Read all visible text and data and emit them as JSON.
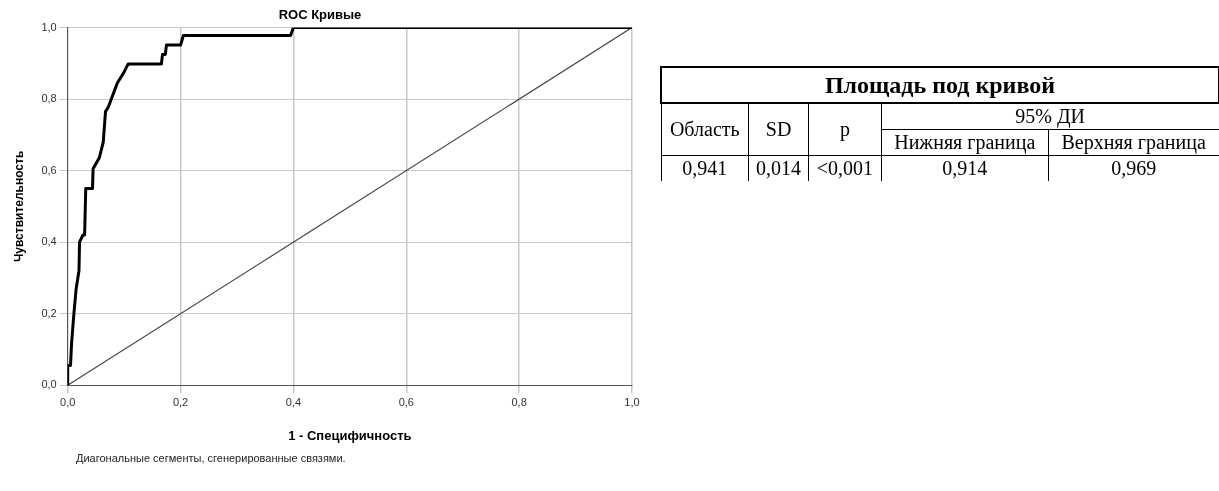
{
  "chart_data": [
    {
      "type": "line",
      "title": "ROC Кривые",
      "xlabel": "1 - Специфичность",
      "ylabel": "Чувствительность",
      "xlim": [
        0,
        1
      ],
      "ylim": [
        0,
        1
      ],
      "xticks": [
        {
          "value": 0,
          "label": "0,0"
        },
        {
          "value": 0.2,
          "label": "0,2"
        },
        {
          "value": 0.4,
          "label": "0,4"
        },
        {
          "value": 0.6,
          "label": "0,6"
        },
        {
          "value": 0.8,
          "label": "0,8"
        },
        {
          "value": 1,
          "label": "1,0"
        }
      ],
      "yticks": [
        {
          "value": 0,
          "label": "0,0"
        },
        {
          "value": 0.2,
          "label": "0,2"
        },
        {
          "value": 0.4,
          "label": "0,4"
        },
        {
          "value": 0.6,
          "label": "0,6"
        },
        {
          "value": 0.8,
          "label": "0,8"
        },
        {
          "value": 1,
          "label": "1,0"
        }
      ],
      "grid": true,
      "legend": false,
      "marker": "none",
      "line_style": "solid",
      "series": [
        {
          "color": "#000000",
          "x": [
            0,
            0,
            0.005,
            0.007,
            0.011,
            0.015,
            0.02,
            0.021,
            0.027,
            0.03,
            0.032,
            0.044,
            0.045,
            0.056,
            0.063,
            0.067,
            0.072,
            0.088,
            0.1,
            0.107,
            0.166,
            0.168,
            0.173,
            0.175,
            0.2,
            0.205,
            0.395,
            0.4,
            1
          ],
          "values": [
            0,
            0.055,
            0.055,
            0.12,
            0.2,
            0.27,
            0.32,
            0.4,
            0.42,
            0.42,
            0.55,
            0.55,
            0.605,
            0.636,
            0.68,
            0.765,
            0.778,
            0.845,
            0.876,
            0.898,
            0.898,
            0.925,
            0.925,
            0.951,
            0.951,
            0.978,
            0.978,
            1,
            1
          ]
        },
        {
          "color": "#444444",
          "x": [
            0,
            1
          ],
          "values": [
            0,
            1
          ]
        }
      ],
      "annotations": [
        "Диагональные сегменты, сгенерированные связями."
      ]
    },
    {
      "type": "other",
      "title": "Площадь под кривой",
      "annotations": [
        "Область",
        "SD",
        "p",
        "95% ДИ",
        "Нижняя граница",
        "Верхняя граница",
        "0,941",
        "0,014",
        "<0,001",
        "0,914",
        "0,969"
      ]
    }
  ]
}
